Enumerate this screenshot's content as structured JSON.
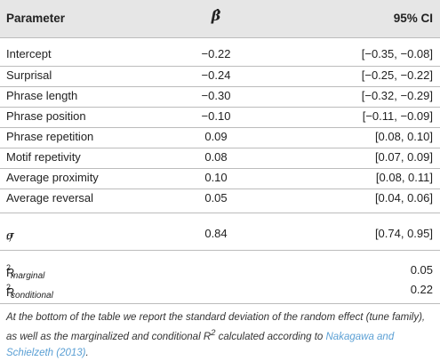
{
  "table": {
    "headers": {
      "parameter": "Parameter",
      "beta": "β̂",
      "ci": "95% CI"
    },
    "rows": [
      {
        "parameter": "Intercept",
        "beta": "−0.22",
        "ci": "[−0.35, −0.08]"
      },
      {
        "parameter": "Surprisal",
        "beta": "−0.24",
        "ci": "[−0.25, −0.22]"
      },
      {
        "parameter": "Phrase length",
        "beta": "−0.30",
        "ci": "[−0.32, −0.29]"
      },
      {
        "parameter": "Phrase position",
        "beta": "−0.10",
        "ci": "[−0.11, −0.09]"
      },
      {
        "parameter": "Phrase repetition",
        "beta": "0.09",
        "ci": "[0.08, 0.10]"
      },
      {
        "parameter": "Motif repetivity",
        "beta": "0.08",
        "ci": "[0.07, 0.09]"
      },
      {
        "parameter": "Average proximity",
        "beta": "0.10",
        "ci": "[0.08, 0.11]"
      },
      {
        "parameter": "Average reversal",
        "beta": "0.05",
        "ci": "[0.04, 0.06]"
      }
    ],
    "sigma": {
      "symbol": "σ",
      "subscript": "tf",
      "beta": "0.84",
      "ci": "[0.74, 0.95]"
    },
    "r2": [
      {
        "symbol": "R",
        "sup": "2",
        "sub": "marginal",
        "ci": "0.05"
      },
      {
        "symbol": "R",
        "sup": "2",
        "sub": "conditional",
        "ci": "0.22"
      }
    ]
  },
  "note": {
    "text_a": "At the bottom of the table we report the standard deviation of the random effect (tune family), as well as the marginalized and conditional R",
    "sup": "2",
    "text_b": " calculated according to ",
    "link": "Nakagawa and Schielzeth (2013)",
    "text_c": "."
  }
}
